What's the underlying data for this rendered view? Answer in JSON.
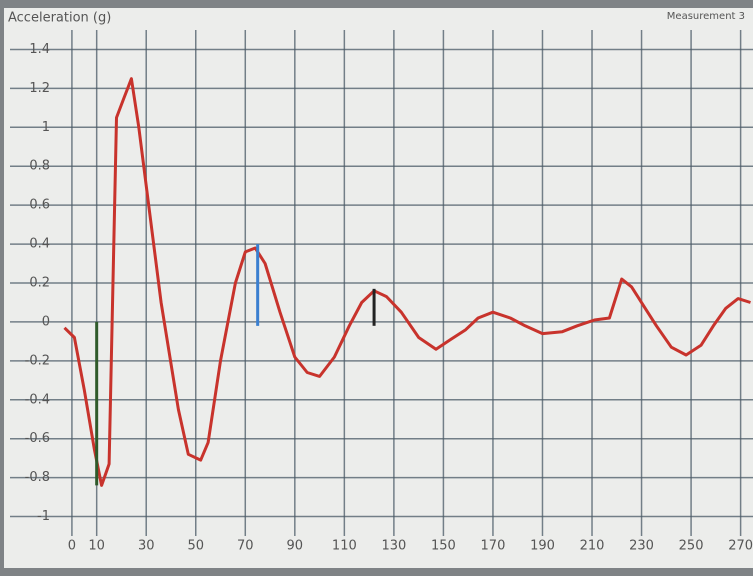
{
  "chart_data": {
    "type": "line",
    "title": "Acceleration (g)",
    "subtitle": "Measurement 3",
    "x": [
      -3,
      1,
      5,
      9,
      12,
      15,
      18,
      21,
      24,
      27,
      31,
      36,
      43,
      47,
      52,
      55,
      60,
      66,
      70,
      74,
      78,
      84,
      90,
      95,
      100,
      106,
      112,
      117,
      122,
      127,
      133,
      140,
      147,
      153,
      159,
      164,
      170,
      177,
      183,
      190,
      198,
      204,
      211,
      217,
      222,
      226,
      231,
      236,
      242,
      248,
      254,
      259,
      264,
      269,
      274
    ],
    "series": [
      {
        "name": "Measurement 3",
        "color": "#c8332c",
        "values": [
          -0.03,
          -0.08,
          -0.35,
          -0.65,
          -0.84,
          -0.73,
          1.05,
          1.15,
          1.25,
          1.0,
          0.6,
          0.1,
          -0.45,
          -0.68,
          -0.71,
          -0.62,
          -0.2,
          0.2,
          0.36,
          0.38,
          0.3,
          0.05,
          -0.18,
          -0.26,
          -0.28,
          -0.18,
          -0.02,
          0.1,
          0.16,
          0.13,
          0.05,
          -0.08,
          -0.14,
          -0.09,
          -0.04,
          0.02,
          0.05,
          0.02,
          -0.02,
          -0.06,
          -0.05,
          -0.02,
          0.01,
          0.02,
          0.22,
          0.18,
          0.08,
          -0.02,
          -0.13,
          -0.17,
          -0.12,
          -0.02,
          0.07,
          0.12,
          0.1
        ]
      }
    ],
    "markers": [
      {
        "x": 10,
        "from": 0,
        "to": -0.84,
        "color": "#2f5a2a"
      },
      {
        "x": 75,
        "from": -0.02,
        "to": 0.4,
        "color": "#3a7fd0"
      },
      {
        "x": 122,
        "from": -0.02,
        "to": 0.17,
        "color": "#222222"
      }
    ],
    "xlim": [
      -25,
      275
    ],
    "ylim": [
      -1.1,
      1.5
    ],
    "xticks": [
      0,
      10,
      30,
      50,
      70,
      90,
      110,
      130,
      150,
      170,
      190,
      210,
      230,
      250,
      270
    ],
    "yticks": [
      -1,
      -0.8,
      -0.6,
      -0.4,
      -0.2,
      0,
      0.2,
      0.4,
      0.6,
      0.8,
      1,
      1.2,
      1.4
    ],
    "grid": true
  }
}
